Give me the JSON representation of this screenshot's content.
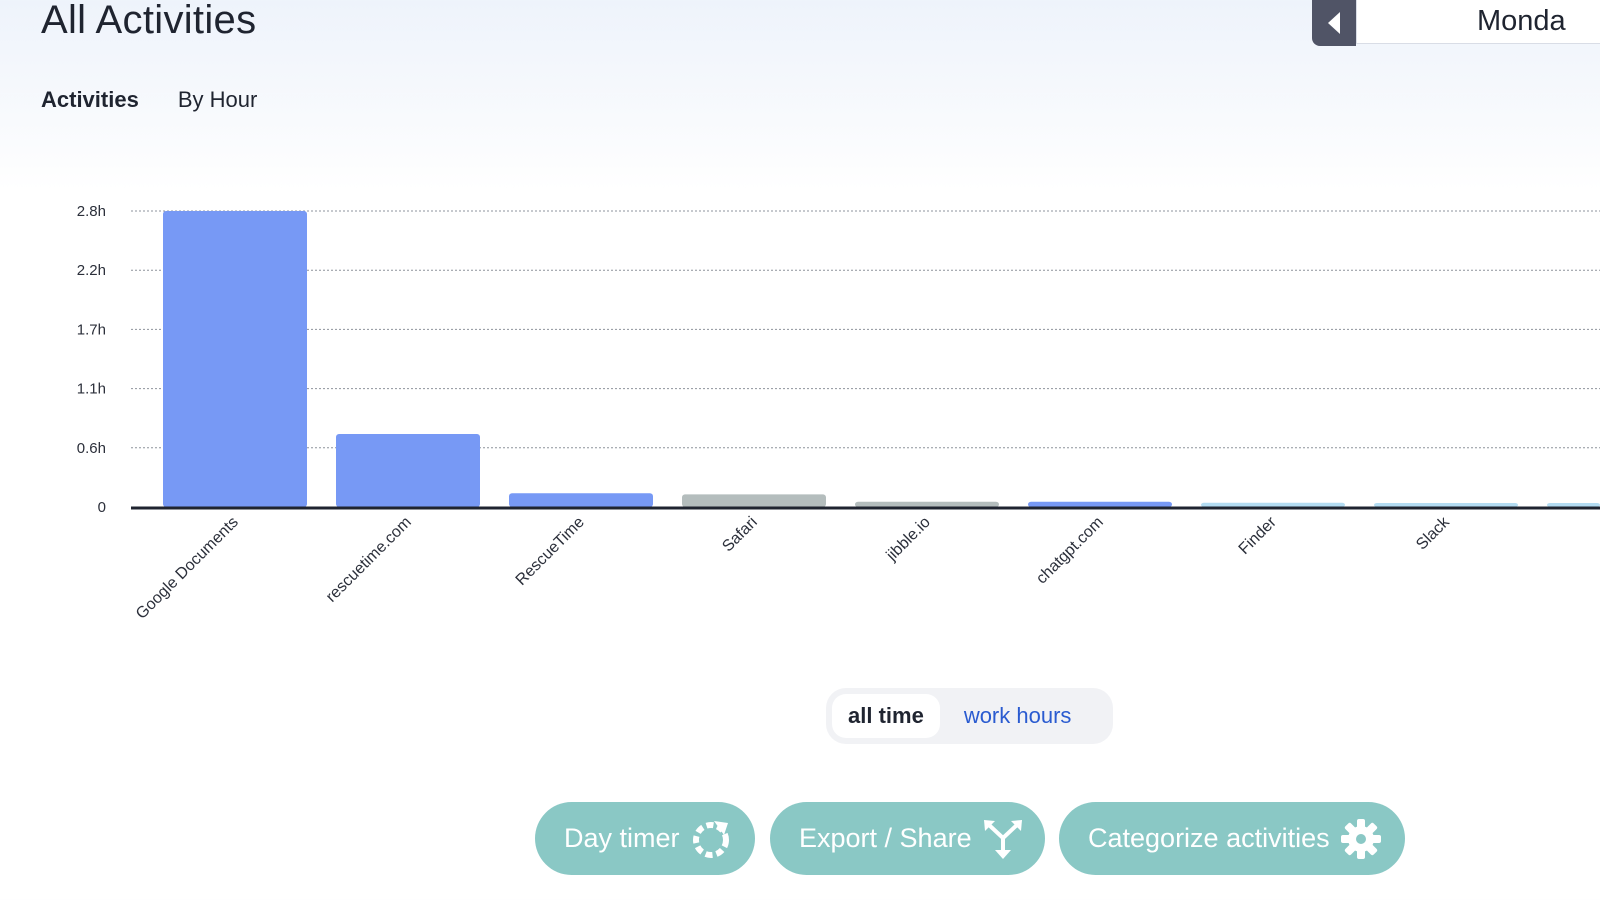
{
  "header": {
    "title": "All Activities",
    "date_label": "Monda"
  },
  "tabs": [
    {
      "label": "Activities",
      "active": true
    },
    {
      "label": "By Hour",
      "active": false
    }
  ],
  "chart_data": {
    "type": "bar",
    "yticks": [
      "0",
      "0.6h",
      "1.1h",
      "1.7h",
      "2.2h",
      "2.8h"
    ],
    "ylim": [
      0,
      2.8
    ],
    "grid": true,
    "categories": [
      "Google Documents",
      "rescuetime.com",
      "RescueTime",
      "Safari",
      "jibble.io",
      "chatgpt.com",
      "Finder",
      "Slack",
      ""
    ],
    "values": [
      2.8,
      0.69,
      0.13,
      0.12,
      0.05,
      0.05,
      0.04,
      0.03,
      0.03
    ],
    "colors": [
      "#7799f5",
      "#7799f5",
      "#7799f5",
      "#b4bdbd",
      "#b4bdbd",
      "#7799f5",
      "#b3dcf2",
      "#b3dcf2",
      "#b3dcf2"
    ]
  },
  "toggle": {
    "selected": "all time",
    "other": "work hours"
  },
  "actions": {
    "day_timer": "Day timer",
    "export_share": "Export / Share",
    "categorize": "Categorize activities"
  },
  "colors": {
    "accent_teal": "#8ac8c5",
    "bar_productive": "#7799f5",
    "bar_neutral": "#b4bdbd",
    "bar_light": "#b3dcf2",
    "link_blue": "#2a5bd0"
  }
}
